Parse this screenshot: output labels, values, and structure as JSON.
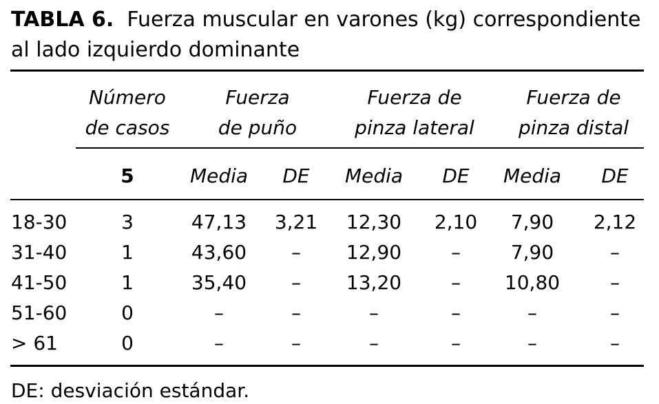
{
  "title": {
    "label": "TABLA 6.",
    "text": "Fuerza muscular en varones (kg) correspondiente",
    "text2": "al lado izquierdo dominante"
  },
  "table": {
    "group_headers": [
      [
        "Número",
        "de casos"
      ],
      [
        "Fuerza",
        "de puño"
      ],
      [
        "Fuerza de",
        "pinza lateral"
      ],
      [
        "Fuerza de",
        "pinza distal"
      ]
    ],
    "sub_headers": [
      "5",
      "Media",
      "DE",
      "Media",
      "DE",
      "Media",
      "DE"
    ],
    "rows": [
      [
        "18-30",
        "3",
        "47,13",
        "3,21",
        "12,30",
        "2,10",
        "7,90",
        "2,12"
      ],
      [
        "31-40",
        "1",
        "43,60",
        "–",
        "12,90",
        "–",
        "7,90",
        "–"
      ],
      [
        "41-50",
        "1",
        "35,40",
        "–",
        "13,20",
        "–",
        "10,80",
        "–"
      ],
      [
        "51-60",
        "0",
        "–",
        "–",
        "–",
        "–",
        "–",
        "–"
      ],
      [
        "> 61",
        "0",
        "–",
        "–",
        "–",
        "–",
        "–",
        "–"
      ]
    ]
  },
  "footnote": "DE: desviación estándar."
}
